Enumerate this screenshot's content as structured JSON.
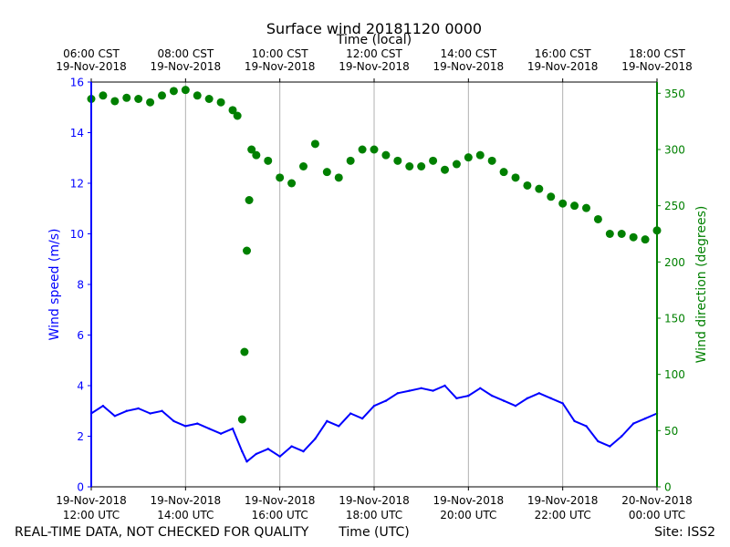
{
  "chart_data": {
    "type": "line+scatter",
    "title": "Surface wind 20181120 0000",
    "top_axis_label": "Time (local)",
    "xlabel": "Time (UTC)",
    "ylabel_left": "Wind speed (m/s)",
    "ylabel_right": "Wind direction (degrees)",
    "footer_left": "REAL-TIME DATA, NOT CHECKED FOR QUALITY",
    "footer_right": "Site: ISS2",
    "x_range_utc_hours": [
      12,
      24
    ],
    "ylim_left": [
      0,
      16
    ],
    "ylim_right": [
      0,
      360
    ],
    "left_ticks": [
      "0",
      "2",
      "4",
      "6",
      "8",
      "10",
      "12",
      "14",
      "16"
    ],
    "right_ticks": [
      "0",
      "50",
      "100",
      "150",
      "200",
      "250",
      "300",
      "350"
    ],
    "bottom_ticks": [
      {
        "hour": 12,
        "date": "19-Nov-2018",
        "time": "12:00 UTC"
      },
      {
        "hour": 14,
        "date": "19-Nov-2018",
        "time": "14:00 UTC"
      },
      {
        "hour": 16,
        "date": "19-Nov-2018",
        "time": "16:00 UTC"
      },
      {
        "hour": 18,
        "date": "19-Nov-2018",
        "time": "18:00 UTC"
      },
      {
        "hour": 20,
        "date": "19-Nov-2018",
        "time": "20:00 UTC"
      },
      {
        "hour": 22,
        "date": "19-Nov-2018",
        "time": "22:00 UTC"
      },
      {
        "hour": 24,
        "date": "20-Nov-2018",
        "time": "00:00 UTC"
      }
    ],
    "top_ticks": [
      {
        "hour": 12,
        "time": "06:00 CST",
        "date": "19-Nov-2018"
      },
      {
        "hour": 14,
        "time": "08:00 CST",
        "date": "19-Nov-2018"
      },
      {
        "hour": 16,
        "time": "10:00 CST",
        "date": "19-Nov-2018"
      },
      {
        "hour": 18,
        "time": "12:00 CST",
        "date": "19-Nov-2018"
      },
      {
        "hour": 20,
        "time": "14:00 CST",
        "date": "19-Nov-2018"
      },
      {
        "hour": 22,
        "time": "16:00 CST",
        "date": "19-Nov-2018"
      },
      {
        "hour": 24,
        "time": "18:00 CST",
        "date": "19-Nov-2018"
      }
    ],
    "gridlines": "vertical",
    "colors": {
      "speed": "#0000ff",
      "direction": "#008000",
      "grid": "#b0b0b0"
    },
    "series": [
      {
        "name": "Wind speed (m/s)",
        "type": "line",
        "axis": "left",
        "x": [
          12.0,
          12.25,
          12.5,
          12.75,
          13.0,
          13.25,
          13.5,
          13.75,
          14.0,
          14.25,
          14.5,
          14.75,
          15.0,
          15.2,
          15.3,
          15.5,
          15.75,
          16.0,
          16.25,
          16.5,
          16.75,
          17.0,
          17.25,
          17.5,
          17.75,
          18.0,
          18.25,
          18.5,
          18.75,
          19.0,
          19.25,
          19.5,
          19.75,
          20.0,
          20.25,
          20.5,
          20.75,
          21.0,
          21.25,
          21.5,
          21.75,
          22.0,
          22.25,
          22.5,
          22.75,
          23.0,
          23.25,
          23.5,
          23.75,
          24.0
        ],
        "values": [
          2.9,
          3.2,
          2.8,
          3.0,
          3.1,
          2.9,
          3.0,
          2.6,
          2.4,
          2.5,
          2.3,
          2.1,
          2.3,
          1.4,
          1.0,
          1.3,
          1.5,
          1.2,
          1.6,
          1.4,
          1.9,
          2.6,
          2.4,
          2.9,
          2.7,
          3.2,
          3.4,
          3.7,
          3.8,
          3.9,
          3.8,
          4.0,
          3.5,
          3.6,
          3.9,
          3.6,
          3.4,
          3.2,
          3.5,
          3.7,
          3.5,
          3.3,
          2.6,
          2.4,
          1.8,
          1.6,
          2.0,
          2.5,
          2.7,
          2.9
        ]
      },
      {
        "name": "Wind direction (degrees)",
        "type": "scatter",
        "axis": "right",
        "x": [
          12.0,
          12.25,
          12.5,
          12.75,
          13.0,
          13.25,
          13.5,
          13.75,
          14.0,
          14.25,
          14.5,
          14.75,
          15.0,
          15.1,
          15.2,
          15.25,
          15.3,
          15.35,
          15.4,
          15.5,
          15.75,
          16.0,
          16.25,
          16.5,
          16.75,
          17.0,
          17.25,
          17.5,
          17.75,
          18.0,
          18.25,
          18.5,
          18.75,
          19.0,
          19.25,
          19.5,
          19.75,
          20.0,
          20.25,
          20.5,
          20.75,
          21.0,
          21.25,
          21.5,
          21.75,
          22.0,
          22.25,
          22.5,
          22.75,
          23.0,
          23.25,
          23.5,
          23.75,
          24.0
        ],
        "values": [
          345,
          348,
          343,
          346,
          345,
          342,
          348,
          352,
          353,
          348,
          345,
          342,
          335,
          330,
          60,
          120,
          210,
          255,
          300,
          295,
          290,
          275,
          270,
          285,
          305,
          280,
          275,
          290,
          300,
          300,
          295,
          290,
          285,
          285,
          290,
          282,
          287,
          293,
          295,
          290,
          280,
          275,
          268,
          265,
          258,
          252,
          250,
          248,
          238,
          225,
          225,
          222,
          220,
          228
        ]
      }
    ]
  }
}
